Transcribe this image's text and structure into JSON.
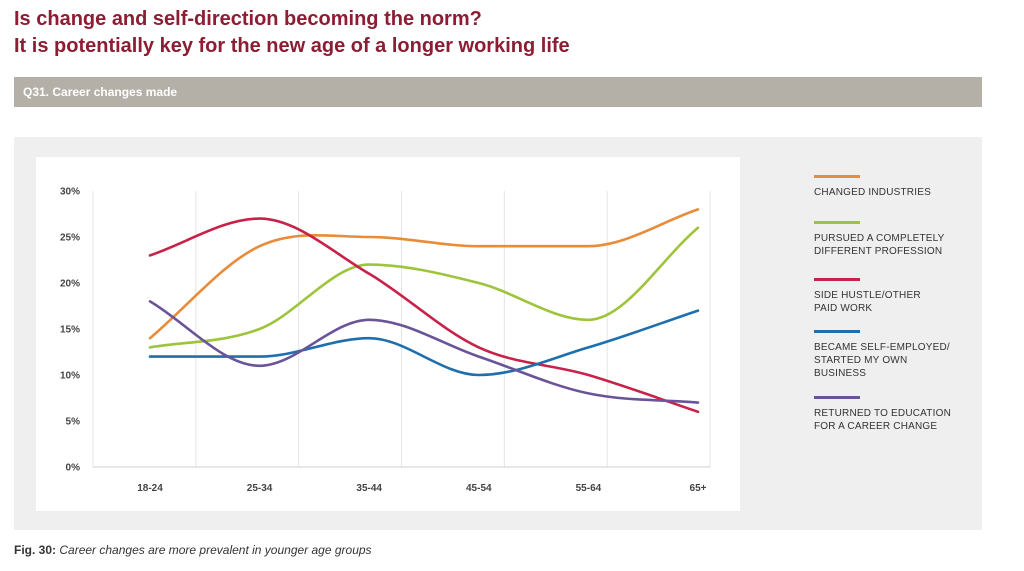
{
  "header": {
    "title_line1": "Is change and self-direction becoming the norm?",
    "title_line2": "It is potentially key for the new age of a longer working life"
  },
  "question_bar": {
    "label": "Q31. Career changes made"
  },
  "caption": {
    "fig_label": "Fig. 30:",
    "text": "Career changes are more prevalent in younger age groups"
  },
  "colors": {
    "title": "#8c1d33",
    "question_bar": "#b4b0a7",
    "panel": "#efefef"
  },
  "chart_data": {
    "type": "line",
    "categories": [
      "18-24",
      "25-34",
      "35-44",
      "45-54",
      "55-64",
      "65+"
    ],
    "ylim": [
      0,
      30
    ],
    "yticks": [
      0,
      5,
      10,
      15,
      20,
      25,
      30
    ],
    "ytick_labels": [
      "0%",
      "5%",
      "10%",
      "15%",
      "20%",
      "25%",
      "30%"
    ],
    "grid": "vertical",
    "legend_position": "right",
    "series": [
      {
        "name": "CHANGED INDUSTRIES",
        "color": "#e88b3a",
        "values": [
          14,
          24,
          25,
          24,
          24,
          28
        ]
      },
      {
        "name": "PURSUED A COMPLETELY\nDIFFERENT PROFESSION",
        "color": "#9dc43b",
        "values": [
          13,
          15,
          22,
          20,
          16,
          26
        ]
      },
      {
        "name": "SIDE HUSTLE/OTHER\nPAID WORK",
        "color": "#c8224a",
        "values": [
          23,
          27,
          21,
          13,
          10,
          6
        ]
      },
      {
        "name": "BECAME SELF-EMPLOYED/\nSTARTED MY OWN\nBUSINESS",
        "color": "#1f6fae",
        "values": [
          12,
          12,
          14,
          10,
          13,
          17
        ]
      },
      {
        "name": "RETURNED TO EDUCATION\nFOR A CAREER CHANGE",
        "color": "#6a5499",
        "values": [
          18,
          11,
          16,
          12,
          8,
          7
        ]
      }
    ]
  }
}
